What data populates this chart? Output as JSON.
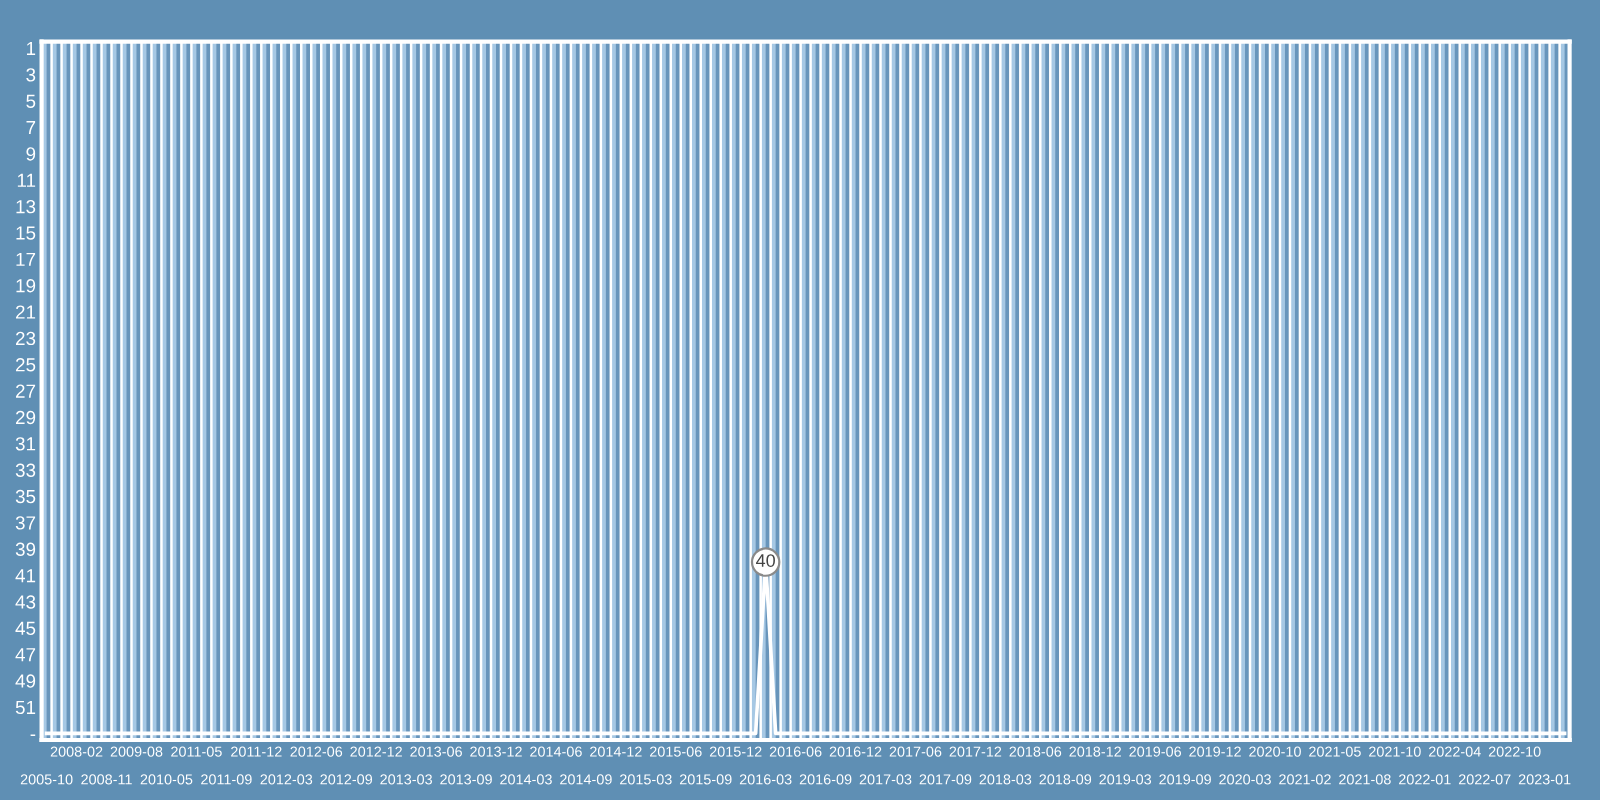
{
  "chart_data": {
    "type": "line",
    "color": "#ffffff",
    "categories": [
      "2005-10",
      null,
      null,
      "2008-02",
      null,
      null,
      "2008-11",
      null,
      null,
      "2009-08",
      null,
      null,
      "2010-05",
      null,
      null,
      "2011-05",
      null,
      null,
      "2011-09",
      null,
      null,
      "2011-12",
      null,
      null,
      "2012-03",
      null,
      null,
      "2012-06",
      null,
      null,
      "2012-09",
      null,
      null,
      "2012-12",
      null,
      null,
      "2013-03",
      null,
      null,
      "2013-06",
      null,
      null,
      "2013-09",
      null,
      null,
      "2013-12",
      null,
      null,
      "2014-03",
      null,
      null,
      "2014-06",
      null,
      null,
      "2014-09",
      null,
      null,
      "2014-12",
      null,
      null,
      "2015-03",
      null,
      null,
      "2015-06",
      null,
      null,
      "2015-09",
      null,
      null,
      "2015-12",
      null,
      null,
      "2016-03",
      null,
      null,
      "2016-06",
      null,
      null,
      "2016-09",
      null,
      null,
      "2016-12",
      null,
      null,
      "2017-03",
      null,
      null,
      "2017-06",
      null,
      null,
      "2017-09",
      null,
      null,
      "2017-12",
      null,
      null,
      "2018-03",
      null,
      null,
      "2018-06",
      null,
      null,
      "2018-09",
      null,
      null,
      "2018-12",
      null,
      null,
      "2019-03",
      null,
      null,
      "2019-06",
      null,
      null,
      "2019-09",
      null,
      null,
      "2019-12",
      null,
      null,
      "2020-03",
      null,
      null,
      "2020-10",
      null,
      null,
      "2021-02",
      null,
      null,
      "2021-05",
      null,
      null,
      "2021-08",
      null,
      null,
      "2021-10",
      null,
      null,
      "2022-01",
      null,
      null,
      "2022-04",
      null,
      null,
      "2022-07",
      null,
      null,
      "2022-10",
      null,
      null,
      "2023-01",
      null,
      null
    ],
    "values": [
      53,
      53,
      53,
      53,
      53,
      53,
      53,
      53,
      53,
      53,
      53,
      53,
      53,
      53,
      53,
      53,
      53,
      53,
      53,
      53,
      53,
      53,
      53,
      53,
      53,
      53,
      53,
      53,
      53,
      53,
      53,
      53,
      53,
      53,
      53,
      53,
      53,
      53,
      53,
      53,
      53,
      53,
      53,
      53,
      53,
      53,
      53,
      53,
      53,
      53,
      53,
      53,
      53,
      53,
      53,
      53,
      53,
      53,
      53,
      53,
      53,
      53,
      53,
      53,
      53,
      53,
      53,
      53,
      53,
      53,
      53,
      53,
      40,
      53,
      53,
      53,
      53,
      53,
      53,
      53,
      53,
      53,
      53,
      53,
      53,
      53,
      53,
      53,
      53,
      53,
      53,
      53,
      53,
      53,
      53,
      53,
      53,
      53,
      53,
      53,
      53,
      53,
      53,
      53,
      53,
      53,
      53,
      53,
      53,
      53,
      53,
      53,
      53,
      53,
      53,
      53,
      53,
      53,
      53,
      53,
      53,
      53,
      53,
      53,
      53,
      53,
      53,
      53,
      53,
      53,
      53,
      53,
      53,
      53,
      53,
      53,
      53,
      53,
      53,
      53,
      53,
      53,
      53,
      53,
      53,
      53,
      53,
      53,
      53,
      53,
      53,
      53,
      53
    ],
    "value_labels": [
      null,
      null,
      null,
      null,
      null,
      null,
      null,
      null,
      null,
      null,
      null,
      null,
      null,
      null,
      null,
      null,
      null,
      null,
      null,
      null,
      null,
      null,
      null,
      null,
      null,
      null,
      null,
      null,
      null,
      null,
      null,
      null,
      null,
      null,
      null,
      null,
      null,
      null,
      null,
      null,
      null,
      null,
      null,
      null,
      null,
      null,
      null,
      null,
      null,
      null,
      null,
      null,
      null,
      null,
      null,
      null,
      null,
      null,
      null,
      null,
      null,
      null,
      null,
      null,
      null,
      null,
      null,
      null,
      null,
      null,
      null,
      null,
      "40",
      null,
      null,
      null,
      null,
      null,
      null,
      null,
      null,
      null,
      null,
      null,
      null,
      null,
      null,
      null,
      null,
      null,
      null,
      null,
      null,
      null,
      null,
      null,
      null,
      null,
      null,
      null,
      null,
      null,
      null,
      null,
      null,
      null,
      null,
      null,
      null,
      null,
      null,
      null,
      null,
      null,
      null,
      null,
      null,
      null,
      null,
      null,
      null,
      null,
      null,
      null,
      null,
      null,
      null,
      null,
      null,
      null,
      null,
      null,
      null,
      null,
      null,
      null,
      null,
      null,
      null,
      null,
      null,
      null,
      null,
      null,
      null,
      null,
      null,
      null,
      null,
      null,
      null,
      null,
      null
    ],
    "ylim": [
      53.5,
      0.5
    ],
    "yticks": [
      1,
      3,
      5,
      7,
      9,
      11,
      13,
      15,
      17,
      19,
      21,
      23,
      25,
      27,
      29,
      31,
      33,
      35,
      37,
      39,
      41,
      43,
      45,
      47,
      49,
      51,
      {
        "value": 53,
        "label": "-"
      }
    ],
    "grid": "x"
  }
}
